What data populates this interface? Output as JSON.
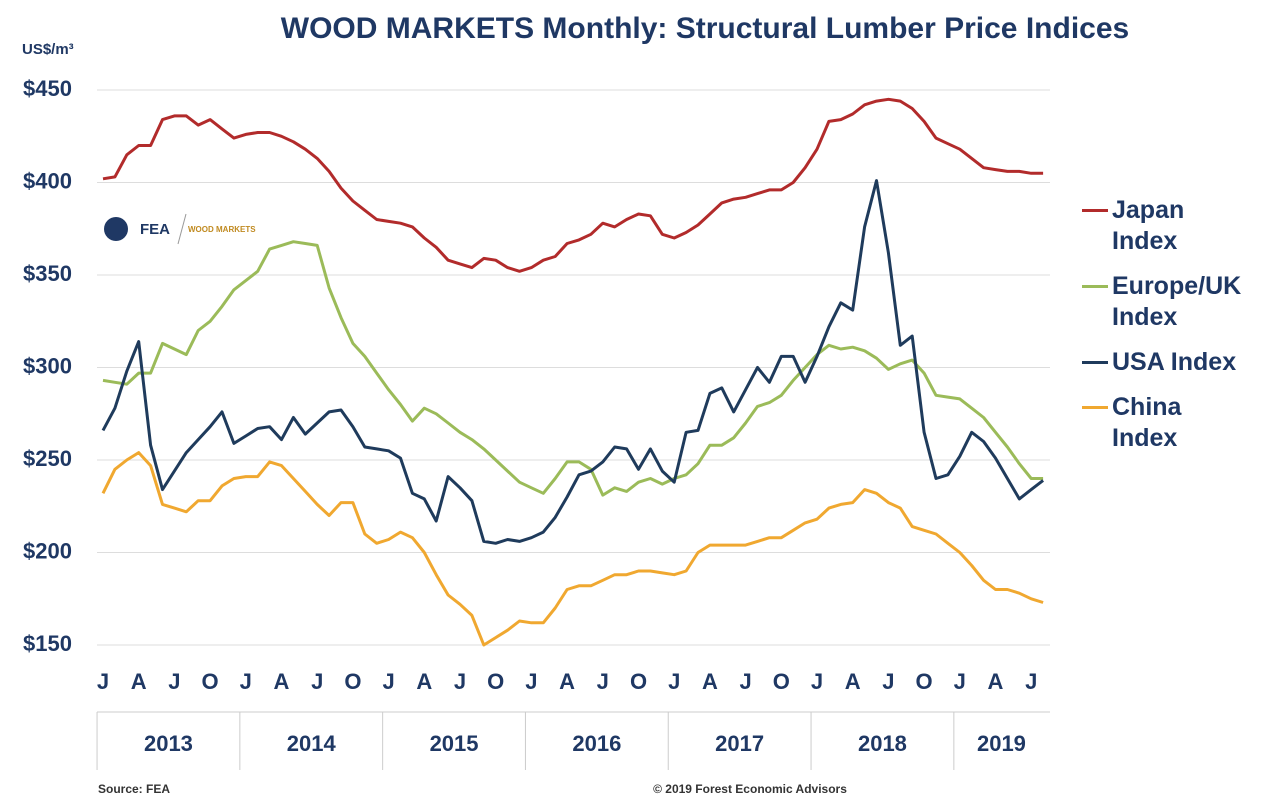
{
  "chart_data": {
    "type": "line",
    "title": "WOOD MARKETS Monthly: Structural Lumber Price Indices",
    "y_label": "US$/m³",
    "logo": {
      "left": "FEA",
      "right": "WOOD MARKETS"
    },
    "source": "Source: FEA",
    "copyright": "© 2019 Forest Economic Advisors",
    "categories": [
      "J",
      null,
      null,
      "A",
      null,
      null,
      "J",
      null,
      null,
      "O",
      null,
      null,
      "J",
      null,
      null,
      "A",
      null,
      null,
      "J",
      null,
      null,
      "O",
      null,
      null,
      "J",
      null,
      null,
      "A",
      null,
      null,
      "J",
      null,
      null,
      "O",
      null,
      null,
      "J",
      null,
      null,
      "A",
      null,
      null,
      "J",
      null,
      null,
      "O",
      null,
      null,
      "J",
      null,
      null,
      "A",
      null,
      null,
      "J",
      null,
      null,
      "O",
      null,
      null,
      "J",
      null,
      null,
      "A",
      null,
      null,
      "J",
      null,
      null,
      "O",
      null,
      null,
      "J",
      null,
      null,
      "A",
      null,
      null,
      "J",
      null
    ],
    "years": [
      "2013",
      "2014",
      "2015",
      "2016",
      "2017",
      "2018",
      "2019"
    ],
    "ylim": [
      150,
      450
    ],
    "yticks": [
      {
        "value": 150,
        "label": "$150"
      },
      {
        "value": 200,
        "label": "$200"
      },
      {
        "value": 250,
        "label": "$250"
      },
      {
        "value": 300,
        "label": "$300"
      },
      {
        "value": 350,
        "label": "$350"
      },
      {
        "value": 400,
        "label": "$400"
      },
      {
        "value": 450,
        "label": "$450"
      }
    ],
    "grid": true,
    "legend": "right",
    "series": [
      {
        "name": "Japan Index",
        "color": "#b22b2b",
        "values": [
          402,
          403,
          415,
          420,
          420,
          434,
          436,
          436,
          431,
          434,
          429,
          424,
          426,
          427,
          427,
          425,
          422,
          418,
          413,
          406,
          397,
          390,
          385,
          380,
          379,
          378,
          376,
          370,
          365,
          358,
          356,
          354,
          359,
          358,
          354,
          352,
          354,
          358,
          360,
          367,
          369,
          372,
          378,
          376,
          380,
          383,
          382,
          372,
          370,
          373,
          377,
          383,
          389,
          391,
          392,
          394,
          396,
          396,
          400,
          408,
          418,
          433,
          434,
          437,
          442,
          444,
          445,
          444,
          440,
          433,
          424,
          421,
          418,
          413,
          408,
          407,
          406,
          406,
          405,
          405
        ]
      },
      {
        "name": "Europe/UK Index",
        "color": "#9bbb59",
        "values": [
          293,
          292,
          291,
          297,
          297,
          313,
          310,
          307,
          320,
          325,
          333,
          342,
          347,
          352,
          364,
          366,
          368,
          367,
          366,
          343,
          327,
          313,
          306,
          297,
          288,
          280,
          271,
          278,
          275,
          270,
          265,
          261,
          256,
          250,
          244,
          238,
          235,
          232,
          240,
          249,
          249,
          245,
          231,
          235,
          233,
          238,
          240,
          237,
          240,
          242,
          248,
          258,
          258,
          262,
          270,
          279,
          281,
          285,
          293,
          300,
          307,
          312,
          310,
          311,
          309,
          305,
          299,
          302,
          304,
          297,
          285,
          284,
          283,
          278,
          273,
          265,
          257,
          248,
          240,
          240
        ]
      },
      {
        "name": "USA Index",
        "color": "#1f3b5c",
        "values": [
          266,
          278,
          298,
          314,
          258,
          234,
          244,
          254,
          261,
          268,
          276,
          259,
          263,
          267,
          268,
          261,
          273,
          264,
          270,
          276,
          277,
          268,
          257,
          256,
          255,
          251,
          232,
          229,
          217,
          241,
          235,
          228,
          206,
          205,
          207,
          206,
          208,
          211,
          219,
          230,
          242,
          244,
          249,
          257,
          256,
          245,
          256,
          244,
          238,
          265,
          266,
          286,
          289,
          276,
          288,
          300,
          292,
          306,
          306,
          292,
          306,
          322,
          335,
          331,
          376,
          401,
          362,
          312,
          317,
          265,
          240,
          242,
          252,
          265,
          260,
          251,
          240,
          229,
          234,
          239
        ]
      },
      {
        "name": "China Index",
        "color": "#f0a830",
        "values": [
          232,
          245,
          250,
          254,
          247,
          226,
          224,
          222,
          228,
          228,
          236,
          240,
          241,
          241,
          249,
          247,
          240,
          233,
          226,
          220,
          227,
          227,
          210,
          205,
          207,
          211,
          208,
          200,
          188,
          177,
          172,
          166,
          150,
          154,
          158,
          163,
          162,
          162,
          170,
          180,
          182,
          182,
          185,
          188,
          188,
          190,
          190,
          189,
          188,
          190,
          200,
          204,
          204,
          204,
          204,
          206,
          208,
          208,
          212,
          216,
          218,
          224,
          226,
          227,
          234,
          232,
          227,
          224,
          214,
          212,
          210,
          205,
          200,
          193,
          185,
          180,
          180,
          178,
          175,
          173
        ]
      }
    ]
  }
}
